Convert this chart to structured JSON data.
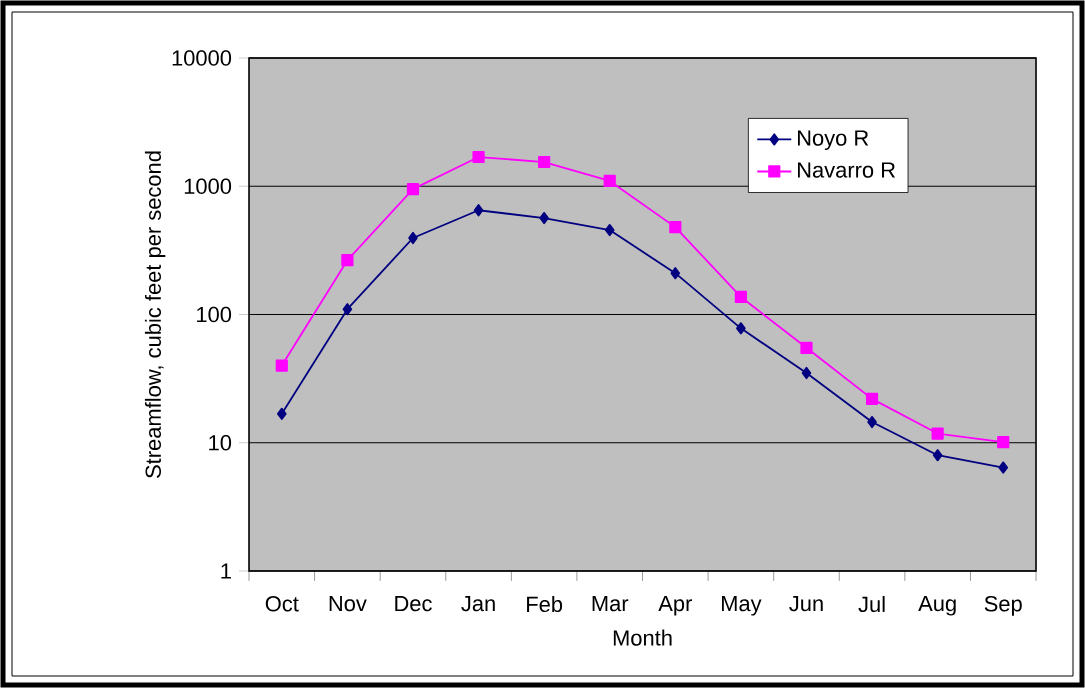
{
  "chart_data": {
    "type": "line",
    "xlabel": "Month",
    "ylabel": "Streamflow, cubic feet per second",
    "categories": [
      "Oct",
      "Nov",
      "Dec",
      "Jan",
      "Feb",
      "Mar",
      "Apr",
      "May",
      "Jun",
      "Jul",
      "Aug",
      "Sep"
    ],
    "series": [
      {
        "name": "Noyo R",
        "color": "#000080",
        "marker": "diamond",
        "values": [
          16.8,
          110,
          395,
          650,
          565,
          455,
          210,
          78,
          35,
          14.5,
          8,
          6.4
        ]
      },
      {
        "name": "Navarro R",
        "color": "#ff00ff",
        "marker": "square",
        "values": [
          40,
          265,
          950,
          1690,
          1545,
          1100,
          480,
          137,
          55,
          22,
          11.8,
          10.1
        ]
      }
    ],
    "log": "y",
    "ylim": [
      1,
      10000
    ],
    "yticks": [
      1,
      10,
      100,
      1000,
      10000
    ],
    "grid": "y",
    "legend": "top right"
  }
}
